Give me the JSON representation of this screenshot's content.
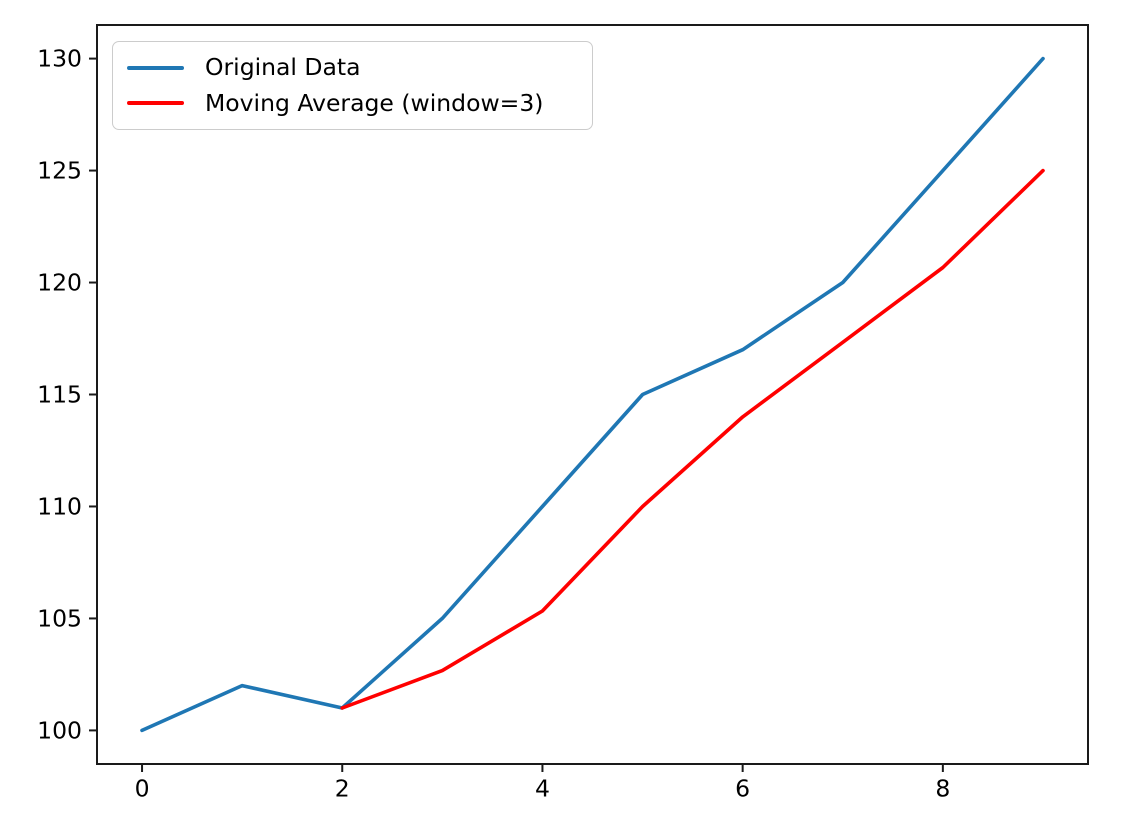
{
  "figure": {
    "background": "#ffffff",
    "axis_color": "#1a1a1a",
    "tick_label_color": "#000000"
  },
  "legend": {
    "position": "upper-left",
    "items": [
      {
        "label": "Original Data",
        "color": "#1f77b4"
      },
      {
        "label": "Moving Average (window=3)",
        "color": "#ff0000"
      }
    ]
  },
  "chart_data": {
    "type": "line",
    "title": "",
    "xlabel": "",
    "ylabel": "",
    "grid": false,
    "legend_position": "upper-left",
    "xlim": [
      -0.45,
      9.45
    ],
    "ylim": [
      98.5,
      131.5
    ],
    "x_ticks": [
      0,
      2,
      4,
      6,
      8
    ],
    "y_ticks": [
      100,
      105,
      110,
      115,
      120,
      125,
      130
    ],
    "series": [
      {
        "name": "Original Data",
        "color": "#1f77b4",
        "x": [
          0,
          1,
          2,
          3,
          4,
          5,
          6,
          7,
          8,
          9
        ],
        "y": [
          100,
          102,
          101,
          105,
          110,
          115,
          117,
          120,
          125,
          130
        ]
      },
      {
        "name": "Moving Average (window=3)",
        "color": "#ff0000",
        "x": [
          2,
          3,
          4,
          5,
          6,
          7,
          8,
          9
        ],
        "y": [
          101,
          102.67,
          105.33,
          110,
          114,
          117.33,
          120.67,
          125
        ]
      }
    ]
  }
}
